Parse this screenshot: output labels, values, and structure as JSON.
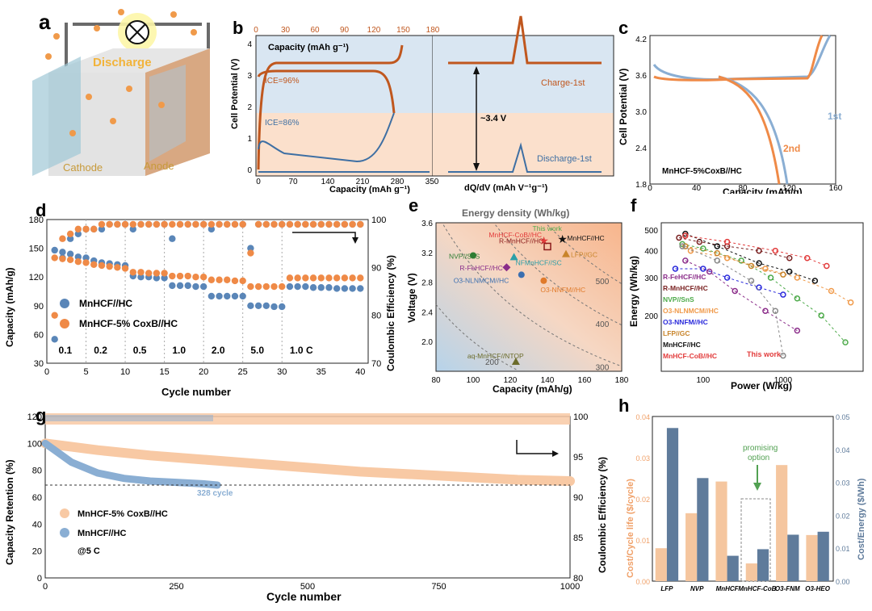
{
  "colors": {
    "orange": "#ef8a47",
    "orange_dark": "#c0571e",
    "blue": "#5a86b8",
    "blue_light": "#8aaed3",
    "peach": "#f8c9a4",
    "slate": "#5f7b9b",
    "tan": "#f5c69f",
    "green": "#52a152",
    "grid": "#999999"
  },
  "panel_a": {
    "letter": "a",
    "discharge": "Discharge",
    "cathode": "Cathode",
    "anode": "Anode"
  },
  "panel_b": {
    "letter": "b",
    "top_label": "Capacity (mAh g⁻¹)",
    "ylabel": "Cell Potential (V)",
    "xlabel_left": "Capacity (mAh g⁻¹)",
    "xlabel_right": "dQ/dV (mAh V⁻¹g⁻¹)",
    "ice1": "ICE=96%",
    "ice2": "ICE=86%",
    "charge": "Charge-1st",
    "discharge": "Discharge-1st",
    "delta": "~3.4 V",
    "top_ticks": [
      "0",
      "30",
      "60",
      "90",
      "120",
      "150",
      "180"
    ],
    "bottom_left_ticks": [
      "0",
      "70",
      "140",
      "210",
      "280",
      "350"
    ],
    "bottom_right_ticks": [
      "-2000",
      "-1000",
      "0",
      "1000",
      "2000"
    ],
    "y_ticks": [
      "0",
      "1",
      "2",
      "3",
      "4"
    ]
  },
  "panel_c": {
    "letter": "c",
    "ylabel": "Cell Potential (V)",
    "xlabel": "Capacity (mAh/g)",
    "sample": "MnHCF-5%CoxB//HC",
    "label1": "1st",
    "label2": "2nd",
    "y_ticks": [
      "1.8",
      "2.4",
      "3.0",
      "3.6",
      "4.2"
    ],
    "x_ticks": [
      "0",
      "40",
      "80",
      "120",
      "160"
    ]
  },
  "chart_data": [
    {
      "panel": "d",
      "type": "scatter",
      "xlabel": "Cycle number",
      "ylabel": "Capacity (mAh/g)",
      "y2label": "Coulombic Efficiency (%)",
      "xlim": [
        0,
        41
      ],
      "ylim": [
        30,
        180
      ],
      "y2lim": [
        70,
        100
      ],
      "x_ticks": [
        "0",
        "5",
        "10",
        "15",
        "20",
        "25",
        "30",
        "35",
        "40"
      ],
      "y_ticks": [
        "30",
        "60",
        "90",
        "120",
        "150",
        "180"
      ],
      "y2_ticks": [
        "70",
        "80",
        "90",
        "100"
      ],
      "rate_labels": [
        "0.1",
        "0.2",
        "0.5",
        "1.0",
        "2.0",
        "5.0",
        "1.0 C"
      ],
      "series": [
        {
          "name": "MnHCF//HC",
          "capacity": [
            148,
            146,
            144,
            141,
            140,
            137,
            135,
            134,
            133,
            132,
            121,
            120,
            120,
            119,
            119,
            111,
            111,
            111,
            110,
            110,
            100,
            100,
            100,
            100,
            100,
            90,
            90,
            90,
            89,
            89,
            110,
            110,
            110,
            109,
            109,
            109,
            108,
            108,
            108,
            108
          ],
          "ce": [
            75,
            92,
            96,
            97,
            98,
            98,
            98,
            99,
            99,
            99,
            98,
            99,
            99,
            99,
            99,
            96,
            99,
            99,
            99,
            99,
            98,
            99,
            99,
            99,
            99,
            94,
            99,
            99,
            99,
            99,
            99,
            99,
            99,
            99,
            99,
            99,
            99,
            99,
            99,
            99
          ]
        },
        {
          "name": "MnHCF-5% CoxB//HC",
          "capacity": [
            140,
            139,
            138,
            136,
            135,
            133,
            132,
            131,
            130,
            129,
            125,
            125,
            124,
            124,
            124,
            121,
            121,
            121,
            120,
            120,
            117,
            117,
            117,
            116,
            116,
            110,
            110,
            110,
            110,
            110,
            119,
            119,
            119,
            119,
            119,
            119,
            119,
            119,
            119,
            119
          ],
          "ce": [
            80,
            96,
            97,
            98,
            98,
            98,
            99,
            99,
            99,
            99,
            99,
            99,
            99,
            99,
            99,
            99,
            99,
            99,
            99,
            99,
            99,
            99,
            99,
            99,
            99,
            93,
            99,
            99,
            99,
            99,
            99,
            99,
            99,
            99,
            99,
            99,
            99,
            99,
            99,
            99
          ]
        }
      ]
    },
    {
      "panel": "e",
      "type": "scatter",
      "title": "Energy density  (Wh/kg)",
      "xlabel": "Capacity  (mAh/g)",
      "ylabel": "Voltage (V)",
      "xlim": [
        80,
        180
      ],
      "ylim": [
        1.6,
        3.6
      ],
      "x_ticks": [
        "80",
        "100",
        "120",
        "140",
        "160",
        "180"
      ],
      "y_ticks": [
        "2.0",
        "2.4",
        "2.8",
        "3.2",
        "3.6"
      ],
      "contours": [
        "200",
        "300",
        "400",
        "500"
      ],
      "points": [
        {
          "label": "This work",
          "x": 145,
          "y": 3.38
        },
        {
          "label": "MnHCF//HC",
          "x": 148,
          "y": 3.38
        },
        {
          "label": "MnHCF-CoB//HC",
          "x": 138,
          "y": 3.36
        },
        {
          "label": "R-MnHCF//HC",
          "x": 140,
          "y": 3.28
        },
        {
          "label": "LFP//GC",
          "x": 150,
          "y": 3.18
        },
        {
          "label": "NVP//SnS",
          "x": 100,
          "y": 3.16
        },
        {
          "label": "R-FeHCF//HC",
          "x": 118,
          "y": 3.0
        },
        {
          "label": "NFMnHCF//SC",
          "x": 122,
          "y": 3.14
        },
        {
          "label": "O3-NLNMCM//HC",
          "x": 126,
          "y": 2.9
        },
        {
          "label": "O3-NNFM//HC",
          "x": 138,
          "y": 2.82
        },
        {
          "label": "aq-MnHCF//NTOP",
          "x": 123,
          "y": 1.73
        }
      ]
    },
    {
      "panel": "f",
      "type": "line",
      "xlabel": "Power (W/kg)",
      "ylabel": "Energy (Wh/kg)",
      "x_ticks": [
        "100",
        "1000"
      ],
      "y_ticks": [
        "200",
        "300",
        "400",
        "500"
      ],
      "legend": [
        "R-FeHCF//HC",
        "R-MnHCF//HC",
        "NVP//SnS",
        "O3-NLNMCM//HC",
        "O3-NNFM//HC",
        "LFP//GC",
        "MnHCF//HC",
        "MnHCF-CoB//HC"
      ],
      "annotation": "This work"
    },
    {
      "panel": "g",
      "type": "scatter",
      "xlabel": "Cycle number",
      "ylabel": "Capacity Retention (%)",
      "y2label": "Coulombic Efficiency (%)",
      "xlim": [
        0,
        1000
      ],
      "ylim": [
        0,
        120
      ],
      "y2lim": [
        80,
        100
      ],
      "x_ticks": [
        "0",
        "250",
        "500",
        "750",
        "1000"
      ],
      "y_ticks": [
        "0",
        "20",
        "40",
        "60",
        "80",
        "100",
        "120"
      ],
      "y2_ticks": [
        "80",
        "85",
        "90",
        "95",
        "100"
      ],
      "series": [
        {
          "name": "MnHCF-5% CoxB//HC",
          "x": [
            0,
            100,
            200,
            300,
            400,
            500,
            600,
            700,
            800,
            900,
            1000
          ],
          "retention": [
            100,
            95,
            91,
            88,
            85,
            82,
            79,
            77,
            75,
            73,
            72
          ]
        },
        {
          "name": "MnHCF//HC",
          "x": [
            0,
            50,
            100,
            150,
            200,
            250,
            300,
            328
          ],
          "retention": [
            100,
            86,
            78,
            74,
            72,
            71,
            70,
            69
          ]
        }
      ],
      "annotation": "328 cycle",
      "condition": "@5 C"
    },
    {
      "panel": "h",
      "type": "bar",
      "categories": [
        "LFP",
        "NVP",
        "MnHCF",
        "MnHCF-CoB",
        "O3-FNM",
        "O3-HEO"
      ],
      "ylabel": "Cost/Cycle life ($/cycle)",
      "y2label": "Cost/Energy ($/Wh)",
      "ylim": [
        0,
        0.04
      ],
      "y2lim": [
        0,
        0.05
      ],
      "y_ticks": [
        "0.00",
        "0.01",
        "0.02",
        "0.03",
        "0.04"
      ],
      "y2_ticks": [
        "0.00",
        "0.01",
        "0.02",
        "0.03",
        "0.04",
        "0.05"
      ],
      "series": [
        {
          "name": "Cost/Cycle life",
          "values": [
            0.008,
            0.0165,
            0.0242,
            0.0043,
            0.0282,
            0.0112
          ]
        },
        {
          "name": "Cost/Energy",
          "values": [
            0.0465,
            0.0313,
            0.0077,
            0.0097,
            0.0141,
            0.015
          ]
        }
      ],
      "annotation": "promising option"
    }
  ],
  "panel_d": {
    "letter": "d",
    "legend1": "MnHCF//HC",
    "legend2": "MnHCF-5% CoxB//HC"
  },
  "panel_e": {
    "letter": "e"
  },
  "panel_f": {
    "letter": "f"
  },
  "panel_g": {
    "letter": "g",
    "legend1": "MnHCF-5% CoxB//HC",
    "legend2": "MnHCF//HC"
  },
  "panel_h": {
    "letter": "h",
    "promising1": "promising",
    "promising2": "option"
  }
}
